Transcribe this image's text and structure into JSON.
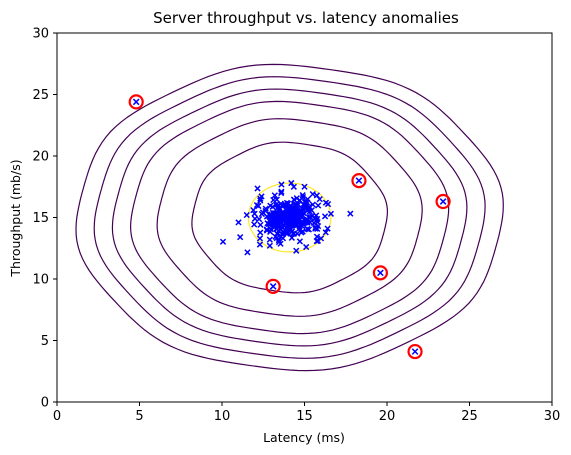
{
  "chart_data": {
    "type": "scatter",
    "title": "Server throughput vs. latency anomalies",
    "xlabel": "Latency (ms)",
    "ylabel": "Throughput (mb/s)",
    "xlim": [
      0,
      30
    ],
    "ylim": [
      0,
      30
    ],
    "xticks": [
      "0",
      "5",
      "10",
      "15",
      "20",
      "25",
      "30"
    ],
    "yticks": [
      "0",
      "5",
      "10",
      "15",
      "20",
      "25",
      "30"
    ],
    "grid": false,
    "colors": {
      "points": "#0000ff",
      "anomaly_ring": "#ff0000",
      "contour": "#440154",
      "inner_contour": "#fde725"
    },
    "cluster": {
      "center": [
        14.1,
        15.0
      ],
      "std": [
        1.35,
        1.35
      ],
      "count": 300
    },
    "points": [
      [
        11.0,
        14.6
      ],
      [
        11.1,
        13.4
      ],
      [
        11.5,
        15.2
      ],
      [
        12.3,
        12.8
      ],
      [
        12.3,
        13.3
      ],
      [
        12.9,
        12.7
      ],
      [
        12.9,
        13.2
      ],
      [
        13.2,
        16.8
      ],
      [
        13.6,
        17.1
      ],
      [
        14.2,
        17.8
      ],
      [
        15.0,
        17.5
      ],
      [
        15.1,
        12.6
      ],
      [
        15.5,
        16.9
      ],
      [
        16.0,
        13.3
      ],
      [
        16.6,
        15.3
      ],
      [
        16.4,
        14.1
      ],
      [
        12.0,
        14.9
      ],
      [
        11.9,
        15.6
      ],
      [
        16.3,
        16.2
      ],
      [
        14.5,
        12.3
      ]
    ],
    "anomalies": [
      [
        4.8,
        24.4
      ],
      [
        13.1,
        9.4
      ],
      [
        18.3,
        18.0
      ],
      [
        19.6,
        10.5
      ],
      [
        21.7,
        4.1
      ],
      [
        23.4,
        16.3
      ]
    ],
    "contours": [
      {
        "center": [
          14.1,
          15.0
        ],
        "rx": 2.5,
        "ry": 2.8,
        "color": "#fde725"
      },
      {
        "center": [
          14.1,
          15.0
        ],
        "rx": 5.9,
        "ry": 6.1,
        "color": "#440154"
      },
      {
        "center": [
          14.1,
          15.0
        ],
        "rx": 8.0,
        "ry": 8.0,
        "color": "#440154"
      },
      {
        "center": [
          14.1,
          15.0
        ],
        "rx": 9.6,
        "ry": 9.4,
        "color": "#440154"
      },
      {
        "center": [
          14.1,
          15.0
        ],
        "rx": 10.7,
        "ry": 10.4,
        "color": "#440154"
      },
      {
        "center": [
          14.1,
          15.0
        ],
        "rx": 11.8,
        "ry": 11.4,
        "color": "#440154"
      },
      {
        "center": [
          14.1,
          15.0
        ],
        "rx": 12.9,
        "ry": 12.4,
        "color": "#440154"
      }
    ]
  }
}
